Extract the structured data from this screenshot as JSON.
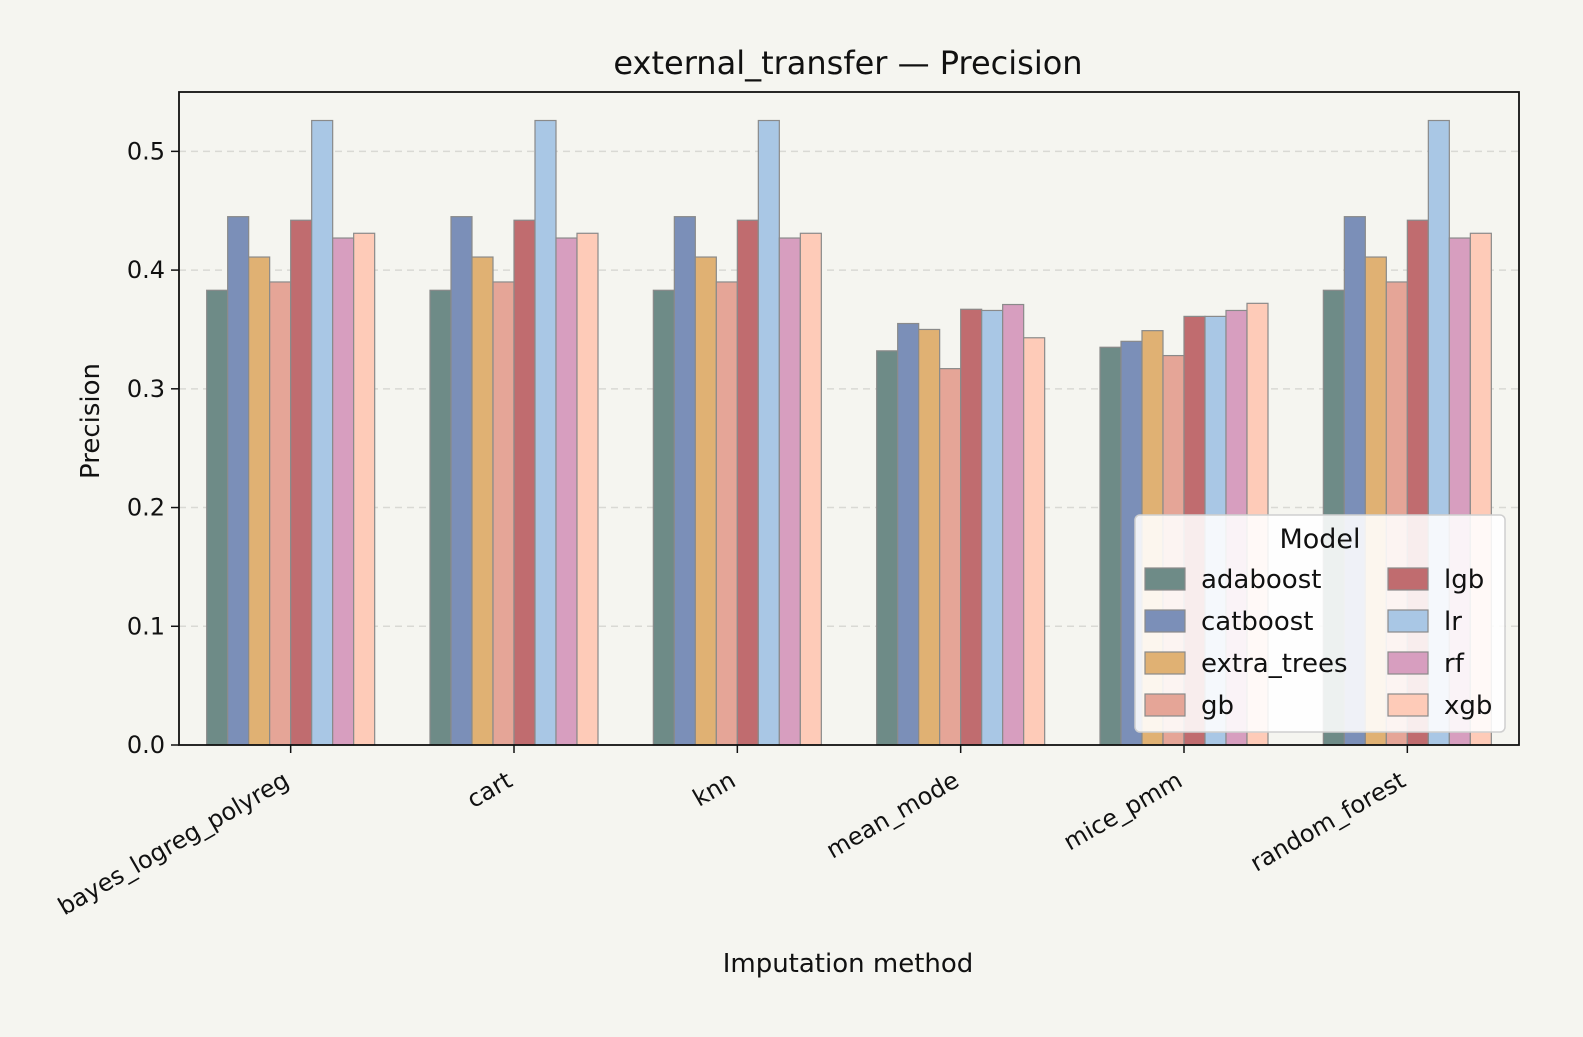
{
  "chart_data": {
    "type": "bar",
    "title": "external_transfer — Precision",
    "xlabel": "Imputation method",
    "ylabel": "Precision",
    "ylim": [
      0,
      0.55
    ],
    "yticks": [
      0.0,
      0.1,
      0.2,
      0.3,
      0.4,
      0.5
    ],
    "ytick_labels": [
      "0.0",
      "0.1",
      "0.2",
      "0.3",
      "0.4",
      "0.5"
    ],
    "grid": "horizontal dashed",
    "legend": {
      "title": "Model",
      "placement": "lower-right",
      "columns": 2
    },
    "categories": [
      "bayes_logreg_polyreg",
      "cart",
      "knn",
      "mean_mode",
      "mice_pmm",
      "random_forest"
    ],
    "series": [
      {
        "name": "adaboost",
        "color": "#6e8b87",
        "values": [
          0.383,
          0.383,
          0.383,
          0.332,
          0.335,
          0.383
        ]
      },
      {
        "name": "catboost",
        "color": "#7b8fb8",
        "values": [
          0.445,
          0.445,
          0.445,
          0.355,
          0.34,
          0.445
        ]
      },
      {
        "name": "extra_trees",
        "color": "#e0b173",
        "values": [
          0.411,
          0.411,
          0.411,
          0.35,
          0.349,
          0.411
        ]
      },
      {
        "name": "gb",
        "color": "#e5a597",
        "values": [
          0.39,
          0.39,
          0.39,
          0.317,
          0.328,
          0.39
        ]
      },
      {
        "name": "lgb",
        "color": "#c06c6f",
        "values": [
          0.442,
          0.442,
          0.442,
          0.367,
          0.361,
          0.442
        ]
      },
      {
        "name": "lr",
        "color": "#a9c7e5",
        "values": [
          0.526,
          0.526,
          0.526,
          0.366,
          0.361,
          0.526
        ]
      },
      {
        "name": "rf",
        "color": "#d79ebf",
        "values": [
          0.427,
          0.427,
          0.427,
          0.371,
          0.366,
          0.427
        ]
      },
      {
        "name": "xgb",
        "color": "#fecbb8",
        "values": [
          0.431,
          0.431,
          0.431,
          0.343,
          0.372,
          0.431
        ]
      }
    ]
  }
}
